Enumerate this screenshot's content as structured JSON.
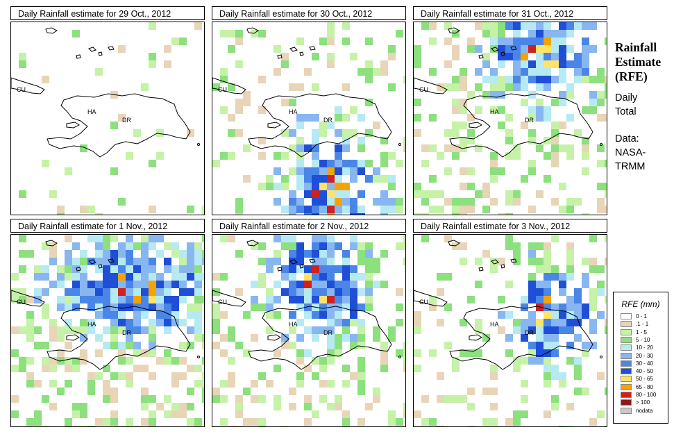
{
  "panels": [
    {
      "title": "Daily Rainfall estimate for  29 Oct., 2012",
      "seed": 29,
      "base": 0.06,
      "hot": []
    },
    {
      "title": "Daily Rainfall estimate for  30 Oct., 2012",
      "seed": 30,
      "base": 0.18,
      "hot": [
        [
          0.6,
          0.88,
          0.35,
          0.55
        ]
      ]
    },
    {
      "title": "Daily Rainfall estimate for  31 Oct., 2012",
      "seed": 31,
      "base": 0.28,
      "hot": [
        [
          0.65,
          0.15,
          0.4,
          0.4
        ]
      ]
    },
    {
      "title": "Daily Rainfall estimate for  1 Nov., 2012",
      "seed": 1,
      "base": 0.38,
      "hot": [
        [
          0.6,
          0.27,
          0.55,
          0.35
        ]
      ]
    },
    {
      "title": "Daily Rainfall estimate for  2 Nov., 2012",
      "seed": 2,
      "base": 0.3,
      "hot": [
        [
          0.55,
          0.25,
          0.4,
          0.4
        ]
      ]
    },
    {
      "title": "Daily Rainfall estimate for  3 Nov., 2012",
      "seed": 3,
      "base": 0.22,
      "hot": [
        [
          0.7,
          0.4,
          0.3,
          0.4
        ]
      ]
    }
  ],
  "map_labels": {
    "cu": "CU",
    "ha": "HA",
    "dr": "DR"
  },
  "sidebar": {
    "title_lines": [
      "Rainfall",
      "Estimate",
      "(RFE)"
    ],
    "daily_lines": [
      "Daily",
      "Total"
    ],
    "data_lines": [
      "Data:",
      "NASA-",
      "TRMM"
    ]
  },
  "legend": {
    "title": "RFE (mm)",
    "classes": [
      {
        "label": "0 - 1",
        "color": "#ffffff"
      },
      {
        "label": ".1 - 1",
        "color": "#e8d5b7"
      },
      {
        "label": "1 - 5",
        "color": "#c6f2a8"
      },
      {
        "label": "5 - 10",
        "color": "#8ce07e"
      },
      {
        "label": "10 - 20",
        "color": "#b6eaf2"
      },
      {
        "label": "20 - 30",
        "color": "#88b6f0"
      },
      {
        "label": "30 - 40",
        "color": "#4a86e8"
      },
      {
        "label": "40 - 50",
        "color": "#1f4fd6"
      },
      {
        "label": "50 - 65",
        "color": "#fde466"
      },
      {
        "label": "65 - 80",
        "color": "#f5a300"
      },
      {
        "label": "80 - 100",
        "color": "#d21f1f"
      },
      {
        "label": "> 100",
        "color": "#8b1a1a"
      },
      {
        "label": "nodata",
        "color": "#c8c8c8"
      }
    ]
  }
}
